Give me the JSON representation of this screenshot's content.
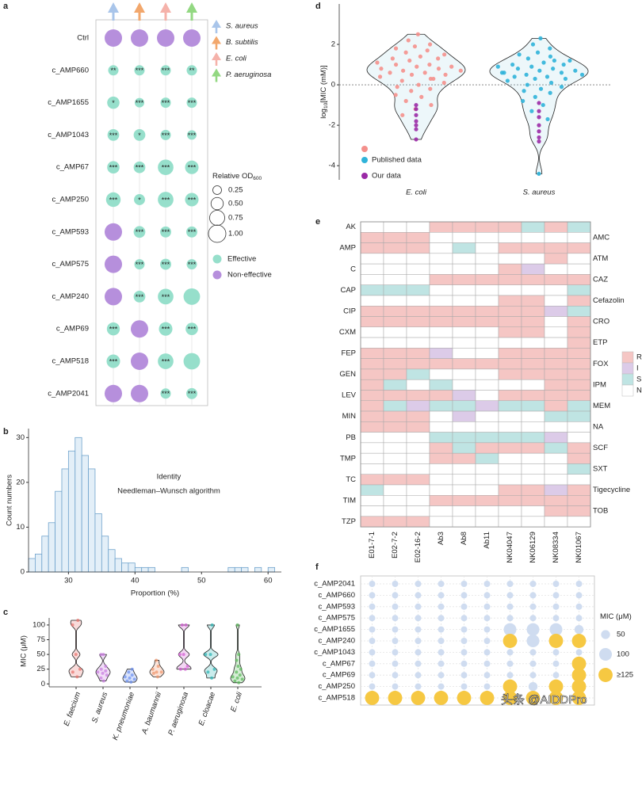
{
  "watermark": "头条 @AIDDPro",
  "chart_data": [
    {
      "type": "dot",
      "panel_label": "a",
      "rows": [
        "Ctrl",
        "c_AMP660",
        "c_AMP1655",
        "c_AMP1043",
        "c_AMP67",
        "c_AMP250",
        "c_AMP593",
        "c_AMP575",
        "c_AMP240",
        "c_AMP69",
        "c_AMP518",
        "c_AMP2041"
      ],
      "columns": [
        {
          "name": "S. aureus",
          "color": "#a9c5ea"
        },
        {
          "name": "B. subtilis",
          "color": "#f2a76c"
        },
        {
          "name": "E. coli",
          "color": "#f5b2aa"
        },
        {
          "name": "P. aeruginosa",
          "color": "#93d882"
        }
      ],
      "sizes": [
        [
          1,
          1,
          1,
          1
        ],
        [
          0.35,
          0.35,
          0.35,
          0.35
        ],
        [
          0.5,
          0.3,
          0.35,
          0.35
        ],
        [
          0.45,
          0.45,
          0.35,
          0.3
        ],
        [
          0.5,
          0.45,
          0.8,
          0.6
        ],
        [
          0.7,
          0.4,
          0.8,
          0.6
        ],
        [
          1,
          0.45,
          0.4,
          0.4
        ],
        [
          1,
          0.35,
          0.4,
          0.35
        ],
        [
          1,
          0.45,
          0.8,
          0.9
        ],
        [
          0.55,
          1,
          0.6,
          0.5
        ],
        [
          0.6,
          1,
          0.8,
          0.9
        ],
        [
          1,
          1,
          0.35,
          0.4
        ]
      ],
      "effective": [
        [
          false,
          false,
          false,
          false
        ],
        [
          true,
          true,
          true,
          true
        ],
        [
          true,
          true,
          true,
          true
        ],
        [
          true,
          true,
          true,
          true
        ],
        [
          true,
          true,
          true,
          true
        ],
        [
          true,
          true,
          true,
          true
        ],
        [
          false,
          true,
          true,
          true
        ],
        [
          false,
          true,
          true,
          true
        ],
        [
          false,
          true,
          true,
          true
        ],
        [
          true,
          false,
          true,
          true
        ],
        [
          true,
          false,
          true,
          true
        ],
        [
          false,
          false,
          true,
          true
        ]
      ],
      "labels": [
        [
          null,
          null,
          null,
          null
        ],
        [
          "**",
          "***",
          "***",
          "**"
        ],
        [
          "*",
          "***",
          "***",
          "***"
        ],
        [
          "***",
          "*",
          "***",
          "***"
        ],
        [
          "***",
          "***",
          "***",
          "***"
        ],
        [
          "***",
          "*",
          "***",
          "***"
        ],
        [
          null,
          "***",
          "***",
          "***"
        ],
        [
          null,
          "***",
          "***",
          "***"
        ],
        [
          null,
          "***",
          "***",
          null
        ],
        [
          "***",
          null,
          "***",
          "***"
        ],
        [
          "***",
          null,
          "***",
          null
        ],
        [
          null,
          null,
          "***",
          "***"
        ]
      ],
      "size_title": "Relative OD",
      "size_title_sub": "600",
      "size_ticks": [
        0.25,
        {
          "value": 0.5,
          "label": "0.50"
        },
        0.75,
        {
          "value": 1,
          "label": "1.00"
        }
      ],
      "status_colors": [
        {
          "name": "Effective",
          "color": "#96dfcb"
        },
        {
          "name": "Non-effective",
          "color": "#b68fdc"
        }
      ]
    },
    {
      "type": "histogram",
      "panel_label": "b",
      "annotations": [
        "Identity",
        "Needleman–Wunsch algorithm"
      ],
      "x_label": "Proportion (%)",
      "y_label": "Count numbers",
      "bins": [
        24,
        25,
        26,
        27,
        28,
        29,
        30,
        31,
        32,
        33,
        34,
        35,
        36,
        37,
        38,
        39,
        40,
        41,
        42,
        43,
        44,
        45,
        46,
        47,
        48,
        49,
        50,
        51,
        52,
        53,
        54,
        55,
        56,
        57,
        58,
        59,
        60,
        61,
        62
      ],
      "values": [
        3,
        4,
        8,
        11,
        18,
        23,
        27,
        30,
        26,
        23,
        13,
        8,
        5,
        3,
        2,
        2,
        1,
        1,
        1,
        0,
        0,
        0,
        0,
        1,
        0,
        0,
        0,
        0,
        0,
        0,
        1,
        1,
        1,
        0,
        1,
        0,
        1,
        0
      ],
      "color": "#e3eff8",
      "edgecolor": "#6fa3cc",
      "xlim": [
        24,
        62
      ],
      "ylim": [
        0,
        32
      ],
      "xticks": [
        30,
        40,
        50,
        60
      ],
      "yticks": [
        0,
        10,
        20,
        30
      ]
    },
    {
      "type": "violin",
      "panel_label": "c",
      "y_label": "MIC (μM)",
      "categories": [
        "E. faecium",
        "S. aureus",
        "K. pneumoniae",
        "A. baumannii",
        "P. aeruginosa",
        "E. cloacae",
        "E. coli"
      ],
      "colors": [
        "#e8706a",
        "#c77be0",
        "#6a8ff0",
        "#f0946a",
        "#d25ad2",
        "#2ab3b3",
        "#58b858"
      ],
      "values": [
        [
          12,
          20,
          25,
          50,
          100,
          108
        ],
        [
          5,
          10,
          15,
          18,
          20,
          22,
          25,
          30,
          50,
          50
        ],
        [
          3,
          5,
          8,
          10,
          12,
          15,
          20,
          25
        ],
        [
          12,
          18,
          20,
          20,
          25,
          30,
          40
        ],
        [
          25,
          25,
          30,
          50,
          50,
          100,
          100
        ],
        [
          10,
          20,
          25,
          50,
          50,
          100
        ],
        [
          2,
          5,
          8,
          10,
          12,
          15,
          20,
          25,
          30,
          40,
          50,
          100
        ]
      ],
      "ylim": [
        -5,
        112
      ],
      "yticks": [
        0,
        25,
        50,
        75,
        100
      ]
    },
    {
      "type": "violin",
      "panel_label": "d",
      "y_label": "log",
      "y_label_sub": "10",
      "y_label_rest": "[MIC (mM)]",
      "categories": [
        "E. coli",
        "S. aureus"
      ],
      "series": [
        {
          "name": "Published data",
          "colors": [
            "#f4908c",
            "#2fb3d9"
          ],
          "values": [
            [
              2.5,
              2.2,
              2.0,
              1.9,
              1.8,
              1.7,
              1.6,
              1.5,
              1.4,
              1.3,
              1.3,
              1.2,
              1.1,
              1.0,
              1.0,
              0.9,
              0.9,
              0.8,
              0.8,
              0.7,
              0.7,
              0.6,
              0.6,
              0.5,
              0.5,
              0.4,
              0.3,
              0.2,
              0.1,
              0.0,
              -0.1,
              -0.2,
              -0.3,
              -0.5,
              -0.6,
              -0.8,
              -1.0,
              -1.2,
              -1.5,
              0.3
            ],
            [
              2.3,
              2.0,
              1.8,
              1.6,
              1.5,
              1.4,
              1.3,
              1.2,
              1.1,
              1.0,
              1.0,
              0.9,
              0.9,
              0.8,
              0.8,
              0.7,
              0.7,
              0.6,
              0.6,
              0.5,
              0.5,
              0.4,
              0.4,
              0.3,
              0.3,
              0.2,
              0.1,
              0.0,
              -0.1,
              -0.2,
              -0.3,
              -0.4,
              -0.6,
              -0.8,
              -1.0,
              -1.3,
              -1.7,
              -4.4,
              0.6,
              1.2
            ]
          ]
        },
        {
          "name": "Our data",
          "color": "#9a2aa6",
          "values": [
            [
              -1.0,
              -1.2,
              -1.5,
              -1.8,
              -2.0,
              -2.2,
              -2.7
            ],
            [
              -0.9,
              -1.3,
              -1.6,
              -2.0,
              -2.3,
              -2.6,
              -2.8
            ]
          ]
        }
      ],
      "ylim": [
        -4.7,
        4.0
      ],
      "yticks": [
        -4,
        -2,
        0,
        2
      ],
      "zero_line": true
    },
    {
      "type": "heatmap",
      "panel_label": "e",
      "rows": [
        "AK",
        "AMC",
        "AMP",
        "ATM",
        "C",
        "CAZ",
        "CAP",
        "Cefazolin",
        "CIP",
        "CRO",
        "CXM",
        "ETP",
        "FEP",
        "FOX",
        "GEN",
        "IPM",
        "LEV",
        "MEM",
        "MIN",
        "NA",
        "PB",
        "SCF",
        "TMP",
        "SXT",
        "TC",
        "Tigecycline",
        "TIM",
        "TOB",
        "TZP"
      ],
      "columns": [
        "E01-7-1",
        "E02-7-2",
        "E02-16-2",
        "Ab3",
        "Ab8",
        "Ab11",
        "NK04047",
        "NK06129",
        "NK08334",
        "NK01067"
      ],
      "values": [
        [
          "N",
          "N",
          "N",
          "R",
          "R",
          "R",
          "R",
          "S",
          "R",
          "S"
        ],
        [
          "R",
          "R",
          "R",
          "N",
          "N",
          "N",
          "N",
          "N",
          "N",
          "N"
        ],
        [
          "R",
          "R",
          "R",
          "N",
          "S",
          "N",
          "R",
          "R",
          "R",
          "R"
        ],
        [
          "N",
          "N",
          "N",
          "N",
          "N",
          "N",
          "N",
          "N",
          "R",
          "N"
        ],
        [
          "N",
          "N",
          "N",
          "N",
          "N",
          "N",
          "R",
          "I",
          "N",
          "N"
        ],
        [
          "N",
          "N",
          "N",
          "R",
          "R",
          "R",
          "R",
          "R",
          "R",
          "R"
        ],
        [
          "S",
          "S",
          "S",
          "N",
          "N",
          "N",
          "N",
          "N",
          "N",
          "S"
        ],
        [
          "N",
          "N",
          "N",
          "N",
          "N",
          "N",
          "R",
          "R",
          "N",
          "R"
        ],
        [
          "R",
          "R",
          "R",
          "R",
          "R",
          "R",
          "R",
          "R",
          "I",
          "S"
        ],
        [
          "R",
          "R",
          "R",
          "R",
          "R",
          "R",
          "R",
          "R",
          "N",
          "R"
        ],
        [
          "N",
          "N",
          "N",
          "N",
          "N",
          "N",
          "R",
          "R",
          "N",
          "R"
        ],
        [
          "N",
          "N",
          "N",
          "N",
          "N",
          "N",
          "N",
          "N",
          "N",
          "R"
        ],
        [
          "R",
          "R",
          "R",
          "I",
          "N",
          "N",
          "R",
          "R",
          "R",
          "R"
        ],
        [
          "R",
          "R",
          "R",
          "R",
          "R",
          "R",
          "R",
          "R",
          "R",
          "R"
        ],
        [
          "R",
          "R",
          "S",
          "N",
          "N",
          "N",
          "R",
          "R",
          "R",
          "R"
        ],
        [
          "R",
          "S",
          "N",
          "S",
          "N",
          "N",
          "N",
          "N",
          "R",
          "R"
        ],
        [
          "R",
          "R",
          "R",
          "R",
          "I",
          "N",
          "R",
          "R",
          "R",
          "R"
        ],
        [
          "R",
          "S",
          "I",
          "S",
          "S",
          "I",
          "S",
          "S",
          "R",
          "S"
        ],
        [
          "R",
          "R",
          "R",
          "N",
          "I",
          "N",
          "N",
          "N",
          "S",
          "S"
        ],
        [
          "R",
          "R",
          "R",
          "N",
          "N",
          "N",
          "N",
          "N",
          "N",
          "N"
        ],
        [
          "N",
          "N",
          "N",
          "S",
          "S",
          "S",
          "S",
          "S",
          "I",
          "N"
        ],
        [
          "N",
          "N",
          "N",
          "R",
          "S",
          "R",
          "R",
          "R",
          "S",
          "R"
        ],
        [
          "N",
          "N",
          "N",
          "R",
          "R",
          "S",
          "N",
          "N",
          "N",
          "R"
        ],
        [
          "N",
          "N",
          "N",
          "N",
          "N",
          "N",
          "N",
          "N",
          "N",
          "S"
        ],
        [
          "R",
          "R",
          "R",
          "N",
          "N",
          "N",
          "N",
          "N",
          "N",
          "N"
        ],
        [
          "S",
          "N",
          "N",
          "N",
          "N",
          "N",
          "R",
          "R",
          "I",
          "R"
        ],
        [
          "N",
          "N",
          "N",
          "R",
          "R",
          "R",
          "R",
          "R",
          "R",
          "R"
        ],
        [
          "N",
          "N",
          "N",
          "N",
          "N",
          "N",
          "N",
          "N",
          "R",
          "R"
        ],
        [
          "R",
          "R",
          "R",
          "N",
          "N",
          "N",
          "N",
          "N",
          "N",
          "N"
        ]
      ],
      "legend": [
        {
          "name": "R",
          "color": "#f5c6c4"
        },
        {
          "name": "I",
          "color": "#dccbe8"
        },
        {
          "name": "S",
          "color": "#bfe4e3"
        },
        {
          "name": "N",
          "color": "#ffffff"
        }
      ]
    },
    {
      "type": "dot",
      "panel_label": "f",
      "rows": [
        "c_AMP2041",
        "c_AMP660",
        "c_AMP593",
        "c_AMP575",
        "c_AMP1655",
        "c_AMP240",
        "c_AMP1043",
        "c_AMP67",
        "c_AMP69",
        "c_AMP250",
        "c_AMP518"
      ],
      "values": [
        [
          25,
          25,
          25,
          25,
          25,
          25,
          25,
          25,
          25,
          25
        ],
        [
          25,
          25,
          25,
          25,
          25,
          25,
          25,
          25,
          25,
          25
        ],
        [
          25,
          25,
          25,
          25,
          25,
          25,
          25,
          25,
          25,
          25
        ],
        [
          25,
          25,
          25,
          25,
          25,
          25,
          25,
          25,
          25,
          25
        ],
        [
          25,
          25,
          25,
          25,
          25,
          25,
          100,
          100,
          100,
          50
        ],
        [
          25,
          25,
          25,
          25,
          25,
          25,
          125,
          100,
          125,
          125
        ],
        [
          25,
          25,
          25,
          25,
          25,
          25,
          25,
          25,
          25,
          25
        ],
        [
          25,
          25,
          25,
          25,
          25,
          25,
          25,
          25,
          25,
          125
        ],
        [
          25,
          25,
          25,
          25,
          25,
          25,
          25,
          25,
          25,
          125
        ],
        [
          25,
          25,
          25,
          25,
          25,
          25,
          125,
          50,
          125,
          125
        ],
        [
          125,
          125,
          125,
          125,
          125,
          125,
          125,
          125,
          125,
          125
        ]
      ],
      "size_title": "MIC (μM)",
      "size_ticks": [
        50,
        100,
        {
          "value": 125,
          "label": "≥125"
        }
      ],
      "colors": [
        "#cfdcf0",
        "#f6c842"
      ]
    }
  ]
}
